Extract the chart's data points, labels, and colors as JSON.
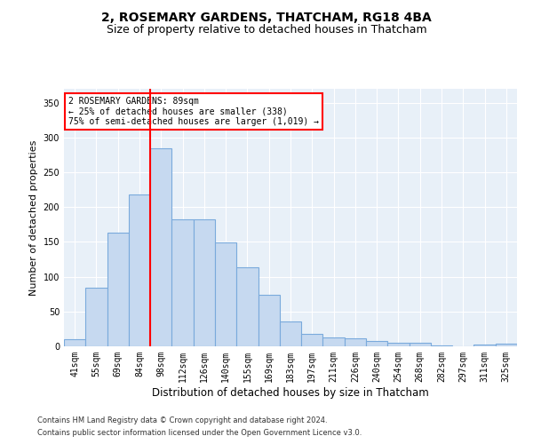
{
  "title": "2, ROSEMARY GARDENS, THATCHAM, RG18 4BA",
  "subtitle": "Size of property relative to detached houses in Thatcham",
  "xlabel": "Distribution of detached houses by size in Thatcham",
  "ylabel": "Number of detached properties",
  "categories": [
    "41sqm",
    "55sqm",
    "69sqm",
    "84sqm",
    "98sqm",
    "112sqm",
    "126sqm",
    "140sqm",
    "155sqm",
    "169sqm",
    "183sqm",
    "197sqm",
    "211sqm",
    "226sqm",
    "240sqm",
    "254sqm",
    "268sqm",
    "282sqm",
    "297sqm",
    "311sqm",
    "325sqm"
  ],
  "values": [
    10,
    84,
    163,
    218,
    285,
    183,
    183,
    149,
    113,
    74,
    36,
    18,
    13,
    11,
    8,
    5,
    5,
    1,
    0,
    2,
    4
  ],
  "bar_color": "#c6d9f0",
  "bar_edge_color": "#7aaadc",
  "vline_x": 3.5,
  "vline_color": "red",
  "annotation_text": "2 ROSEMARY GARDENS: 89sqm\n← 25% of detached houses are smaller (338)\n75% of semi-detached houses are larger (1,019) →",
  "annotation_box_color": "white",
  "annotation_box_edge_color": "red",
  "footnote1": "Contains HM Land Registry data © Crown copyright and database right 2024.",
  "footnote2": "Contains public sector information licensed under the Open Government Licence v3.0.",
  "ylim": [
    0,
    370
  ],
  "plot_bg_color": "#e8f0f8",
  "title_fontsize": 10,
  "subtitle_fontsize": 9,
  "ylabel_fontsize": 8,
  "xlabel_fontsize": 8.5,
  "tick_fontsize": 7,
  "annot_fontsize": 7,
  "footnote_fontsize": 6
}
